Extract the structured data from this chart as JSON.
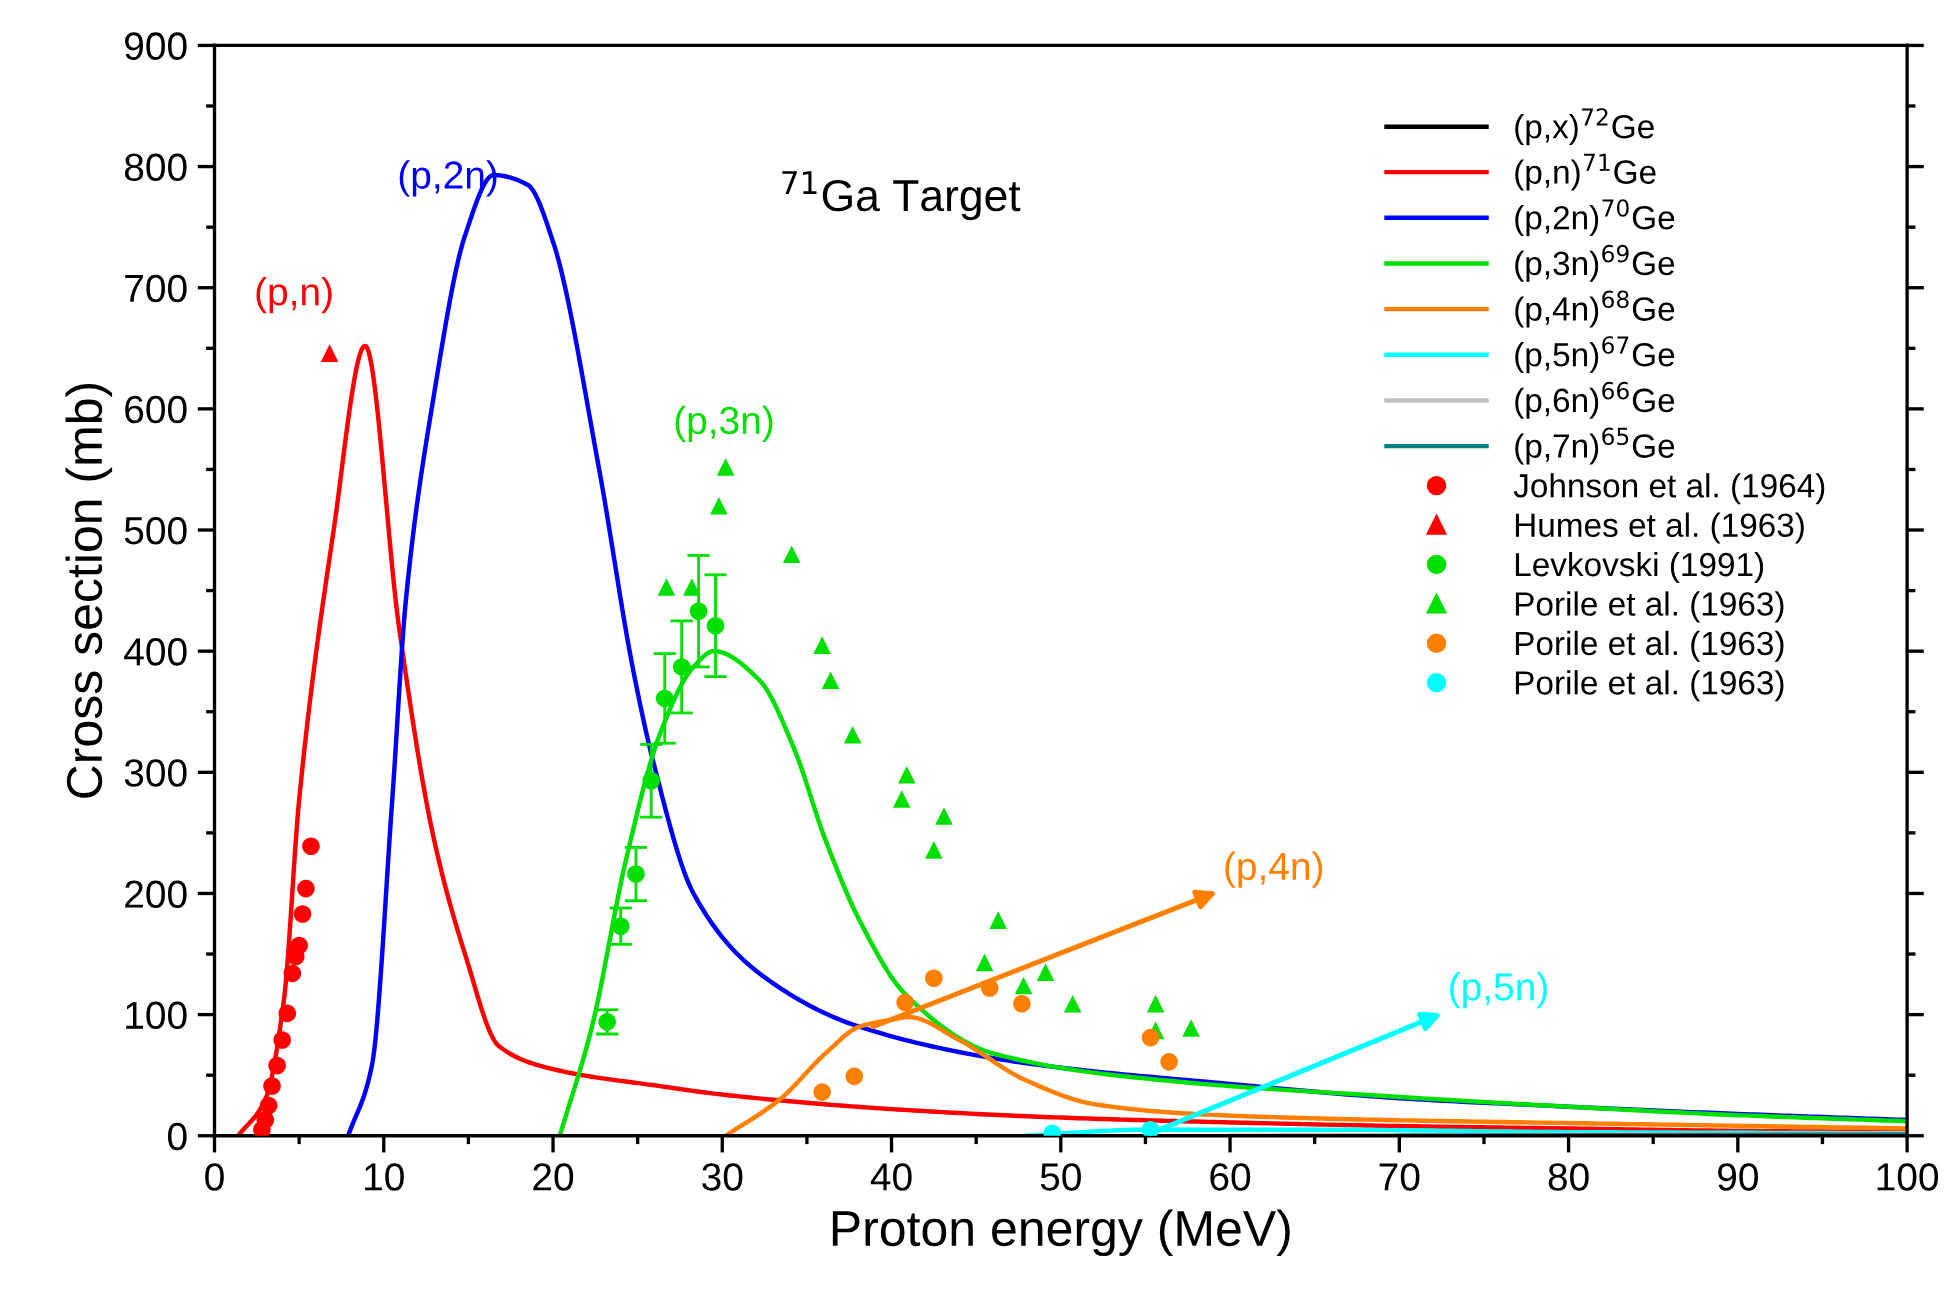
{
  "chart_data": {
    "type": "line",
    "xlabel": "Proton energy (MeV)",
    "ylabel": "Cross section (mb)",
    "xlim": [
      0,
      100
    ],
    "ylim": [
      0,
      900
    ],
    "xticks": [
      0,
      10,
      20,
      30,
      40,
      50,
      60,
      70,
      80,
      90,
      100
    ],
    "yticks": [
      0,
      100,
      200,
      300,
      400,
      500,
      600,
      700,
      800,
      900
    ],
    "grid": false,
    "legend": "top right",
    "line_style": "solid",
    "series": [
      {
        "name": "(p,x)$^{72}$Ge",
        "color": "#000000"
      },
      {
        "name": "(p,n)$^{71}$Ge",
        "color": "#ff0000",
        "x": [
          1.4,
          3.0,
          4.1,
          5.0,
          7.0,
          8.9,
          10.9,
          12.9,
          14.8,
          16.8,
          20,
          26.3,
          30,
          40,
          50,
          60,
          70,
          80,
          90,
          100
        ],
        "values": [
          0,
          30,
          112,
          277,
          496,
          652,
          420,
          249,
          150,
          74,
          55,
          41,
          34,
          22,
          15,
          11,
          8,
          6,
          4,
          3
        ]
      },
      {
        "name": "(p,2n)$^{70}$Ge",
        "color": "#0000ff",
        "x": [
          7.9,
          9.3,
          10.5,
          11.3,
          12.9,
          14.8,
          16.5,
          18.5,
          20,
          22.7,
          24.7,
          25.9,
          28.3,
          32.2,
          38.1,
          47.9,
          59.8,
          70,
          80,
          90,
          100
        ],
        "values": [
          0,
          58,
          277,
          441,
          606,
          743,
          793,
          785,
          738,
          552,
          387,
          310,
          200,
          134,
          90,
          60,
          43,
          31,
          24,
          18,
          13
        ]
      },
      {
        "name": "(p,3n)$^{69}$Ge",
        "color": "#00e000",
        "x": [
          20.4,
          22.3,
          24.3,
          26.3,
          28.3,
          29.5,
          32.2,
          34.2,
          36.1,
          38.1,
          40.8,
          46,
          55.9,
          70,
          80,
          90,
          100
        ],
        "values": [
          0,
          90,
          227,
          331,
          387,
          400,
          376,
          321,
          244,
          178,
          117,
          68,
          46,
          32,
          24,
          17,
          12
        ]
      },
      {
        "name": "(p,4n)$^{68}$Ge",
        "color": "#ff8000",
        "x": [
          30.2,
          33.4,
          36.1,
          38.1,
          40.1,
          41,
          44,
          47.9,
          52,
          57.9,
          66,
          82,
          100
        ],
        "values": [
          0,
          30,
          68,
          90,
          96,
          98,
          79,
          46,
          26,
          18,
          14,
          10,
          6
        ]
      },
      {
        "name": "(p,5n)$^{67}$Ge",
        "color": "#00ffff",
        "x": [
          48,
          55,
          65,
          80,
          100
        ],
        "values": [
          0,
          5,
          5,
          3,
          2
        ]
      },
      {
        "name": "(p,6n)$^{66}$Ge",
        "color": "#c0c0c0",
        "x": [
          60,
          80,
          100
        ],
        "values": [
          0,
          1,
          2
        ]
      },
      {
        "name": "(p,7n)$^{65}$Ge",
        "color": "#008080",
        "x": [
          70,
          100
        ],
        "values": [
          0,
          1
        ]
      },
      {
        "name": "Johnson et al. (1964)",
        "type": "scatter",
        "marker": "circle",
        "color": "#ff0000",
        "x": [
          2.8,
          3.0,
          3.2,
          3.4,
          3.7,
          4.0,
          4.3,
          4.6,
          4.8,
          5.0,
          5.2,
          5.4,
          5.7
        ],
        "values": [
          5,
          13,
          25,
          41,
          58,
          79,
          101,
          134,
          148,
          157,
          183,
          204,
          239
        ]
      },
      {
        "name": "Humes et al. (1963)",
        "type": "scatter",
        "marker": "triangle",
        "color": "#ff0000",
        "x": [
          6.8
        ],
        "values": [
          646
        ]
      },
      {
        "name": "Levkovski (1991)",
        "type": "scatter",
        "marker": "circle",
        "color": "#00e000",
        "x": [
          23.2,
          24.0,
          24.9,
          25.8,
          26.6,
          27.6,
          28.6,
          29.6
        ],
        "values": [
          94,
          173,
          216,
          293,
          361,
          387,
          433,
          421
        ],
        "errors": [
          10,
          15,
          22,
          30,
          37,
          38,
          46,
          42
        ]
      },
      {
        "name": "Porile et al. (1963)",
        "type": "scatter",
        "marker": "triangle",
        "color": "#00e000",
        "x": [
          26.7,
          28.2,
          29.8,
          30.2,
          34.1,
          35.9,
          36.4,
          37.7,
          40.9,
          40.6,
          43.1,
          42.5,
          46.3,
          45.5,
          47.8,
          49.1,
          50.7,
          55.6,
          55.6,
          57.7
        ],
        "values": [
          453,
          453,
          520,
          552,
          480,
          405,
          376,
          331,
          298,
          278,
          264,
          236,
          178,
          143,
          124,
          135,
          109,
          109,
          87,
          89
        ]
      },
      {
        "name": "Porile et al. (1963)",
        "type": "scatter",
        "marker": "circle",
        "color": "#ff8000",
        "x": [
          35.9,
          37.8,
          40.8,
          42.5,
          45.8,
          47.7,
          55.3,
          56.4
        ],
        "values": [
          36,
          49,
          110,
          130,
          122,
          109,
          81,
          61
        ]
      },
      {
        "name": "Porile et al. (1963)",
        "type": "scatter",
        "marker": "circle",
        "color": "#00ffff",
        "x": [
          49.5,
          55.3
        ],
        "values": [
          2,
          5
        ]
      }
    ],
    "annotations": [
      "$^{71}$Ga Target",
      "(p,n)",
      "(p,2n)",
      "(p,3n)",
      {
        "text": "(p,4n)",
        "x": 38.9,
        "y": 90
      },
      {
        "text": "(p,5n)",
        "x": 55.3,
        "y": 2
      }
    ]
  }
}
